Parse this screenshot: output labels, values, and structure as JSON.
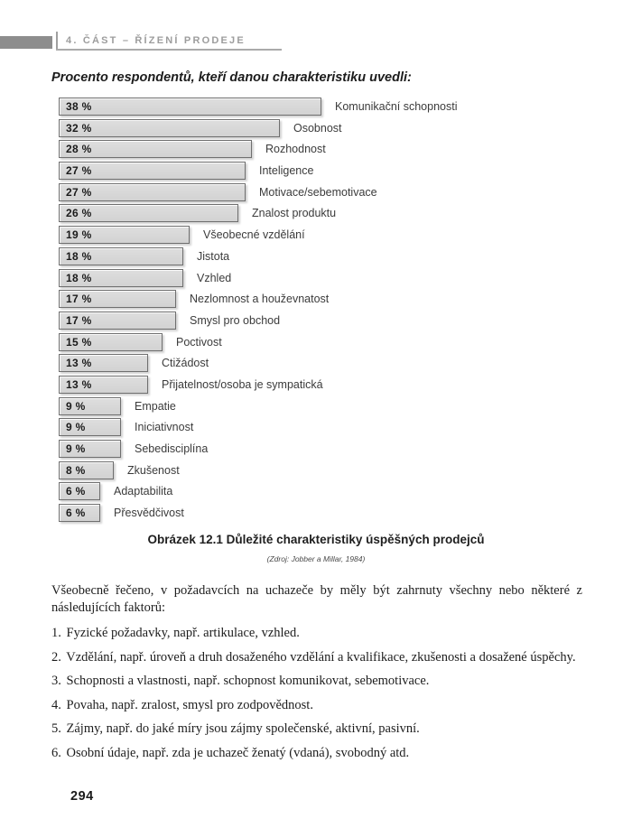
{
  "page": {
    "header": {
      "section_label": "4. ČÁST – ŘÍZENÍ PRODEJE"
    },
    "chart_title": "Procento respondentů, kteří danou charakteristiku uvedli:",
    "caption": {
      "title": "Obrázek 12.1 Důležité charakteristiky úspěšných prodejců",
      "source": "(Zdroj: Jobber a Millar, 1984)"
    },
    "body": {
      "intro": "Všeobecně řečeno, v požadavcích na uchazeče by měly být zahrnuty všechny nebo některé z následujících faktorů:",
      "list": [
        "Fyzické požadavky, např. artikulace, vzhled.",
        "Vzdělání, např. úroveň a druh dosaženého vzdělání a kvalifikace, zkušenosti a dosažené úspěchy.",
        "Schopnosti a vlastnosti, např. schopnost komunikovat, sebemotivace.",
        "Povaha, např. zralost, smysl pro zodpovědnost.",
        "Zájmy, např. do jaké míry jsou zájmy společenské, aktivní, pasivní.",
        "Osobní údaje, např. zda je uchazeč ženatý (vdaná), svobodný atd."
      ]
    },
    "page_number": "294"
  },
  "chart_data": {
    "type": "bar",
    "orientation": "horizontal",
    "title": "Procento respondentů, kteří danou charakteristiku uvedli:",
    "categories": [
      "Komunikační schopnosti",
      "Osobnost",
      "Rozhodnost",
      "Inteligence",
      "Motivace/sebemotivace",
      "Znalost produktu",
      "Všeobecné vzdělání",
      "Jistota",
      "Vzhled",
      "Nezlomnost a houževnatost",
      "Smysl pro obchod",
      "Poctivost",
      "Ctižádost",
      "Přijatelnost/osoba je sympatická",
      "Empatie",
      "Iniciativnost",
      "Sebedisciplína",
      "Zkušenost",
      "Adaptabilita",
      "Přesvědčivost"
    ],
    "values": [
      38,
      32,
      28,
      27,
      27,
      26,
      19,
      18,
      18,
      17,
      17,
      15,
      13,
      13,
      9,
      9,
      9,
      8,
      6,
      6
    ],
    "value_suffix": " %",
    "xlim": [
      0,
      40
    ],
    "grid": false,
    "legend": false,
    "bar_fill": "#d6d6d6",
    "bar_border": "#6f6f6f"
  }
}
